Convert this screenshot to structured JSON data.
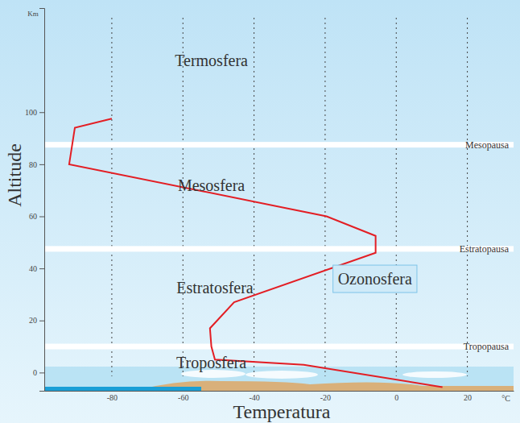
{
  "chart_data": {
    "type": "line",
    "x_label": "Temperatura",
    "y_label": "Altitude",
    "x": [
      13,
      -26,
      -51,
      -52,
      -52.4,
      -45.6,
      -5.8,
      -5.8,
      -19.6,
      -92,
      -90.4,
      -80
    ],
    "values": [
      -5.6,
      3,
      5,
      10,
      17,
      27,
      46,
      52.5,
      60,
      80,
      94,
      97.5
    ],
    "color": "#e31e24",
    "xlim": [
      -99,
      33
    ],
    "ylim": [
      -7,
      140
    ],
    "xticks": [
      -80,
      -60,
      -40,
      -20,
      0,
      20
    ],
    "yticks": [
      0,
      20,
      40,
      60,
      80,
      100
    ],
    "grid": true,
    "units": {
      "x": "°C",
      "y": "Km"
    },
    "layers": [
      {
        "text": "Termosfera",
        "x": -52,
        "y": 120
      },
      {
        "text": "Mesosfera",
        "x": -52,
        "y": 72
      },
      {
        "text": "Estratosfera",
        "x": -51,
        "y": 32.5
      },
      {
        "text": "Troposfera",
        "x": -52,
        "y": 3.7
      }
    ],
    "boundaries": [
      {
        "text": "Tropopausa",
        "y": 10
      },
      {
        "text": "Estratopausa",
        "y": 47.5
      },
      {
        "text": "Mesopausa",
        "y": 87.5
      }
    ],
    "highlight": {
      "text": "Ozonosfera",
      "x": -6,
      "y": 36
    }
  }
}
